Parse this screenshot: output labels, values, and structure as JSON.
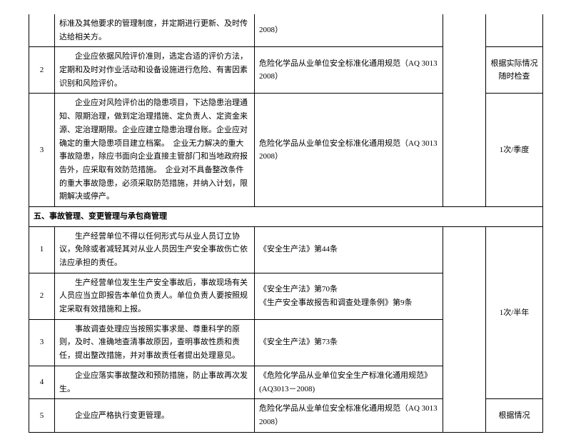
{
  "rows_top": [
    {
      "num": "",
      "desc": "标准及其他要求的管理制度，并定期进行更新、及时传达给相关方。",
      "ref": "2008）",
      "freq": ""
    },
    {
      "num": "2",
      "desc": "　　企业应依据风险评价准则，选定合适的评价方法，定期和及时对作业活动和设备设施进行危险、有害因素识别和风险评价。",
      "ref": "危险化学品从业单位安全标准化通用规范（AQ 3013 2008）",
      "freq": "根据实际情况随时检查"
    },
    {
      "num": "3",
      "desc": "　　企业应对风险评价出的隐患项目，下达隐患治理通知、限期治理，做到定治理措施、定负责人、定资金来源、定治理期限。企业应建立隐患治理台账。企业应对确定的重大隐患项目建立档案。　企业无力解决的重大事故隐患，除应书面向企业直接主管部门和当地政府报告外，应采取有效防范措施。　企业对不具备整改条件的重大事故隐患，必须采取防范措施，并纳入计划，限期解决或停产。",
      "ref": "危险化学品从业单位安全标准化通用规范（AQ 3013 2008）",
      "freq": "1次/季度"
    }
  ],
  "section_header": "五、事故管理、变更管理与承包商管理",
  "rows_bottom": [
    {
      "num": "1",
      "desc": "　　生产经营单位不得以任何形式与从业人员订立协议，免除或者减轻其对从业人员因生产安全事故伤亡依法应承担的责任。",
      "ref": "《安全生产法》第44条"
    },
    {
      "num": "2",
      "desc": "　　生产经营单位发生生产安全事故后，事故现场有关人员应当立即报告本单位负责人。单位负责人要按照规定采取有效措施和上报。",
      "ref": "《安全生产法》第70条\n《生产安全事故报告和调查处理条例》第9条"
    },
    {
      "num": "3",
      "desc": "　　事故调查处理应当按照实事求是、尊重科学的原则，及时、准确地查清事故原因，查明事故性质和责任，提出整改措施，并对事故责任者提出处理意见。",
      "ref": "《安全生产法》第73条"
    },
    {
      "num": "4",
      "desc": "　　企业应落实事故整改和预防措施，防止事故再次发生。",
      "ref": "《危险化学品从业单位安全生产标准化通用规范》(AQ3013－2008)"
    },
    {
      "num": "5",
      "desc": "　　企业应严格执行变更管理。",
      "ref": "危险化学品从业单位安全标准化通用规范（AQ 3013 2008）"
    }
  ],
  "freq_bottom_merged": "1次/半年",
  "freq_row5": "根据情况"
}
